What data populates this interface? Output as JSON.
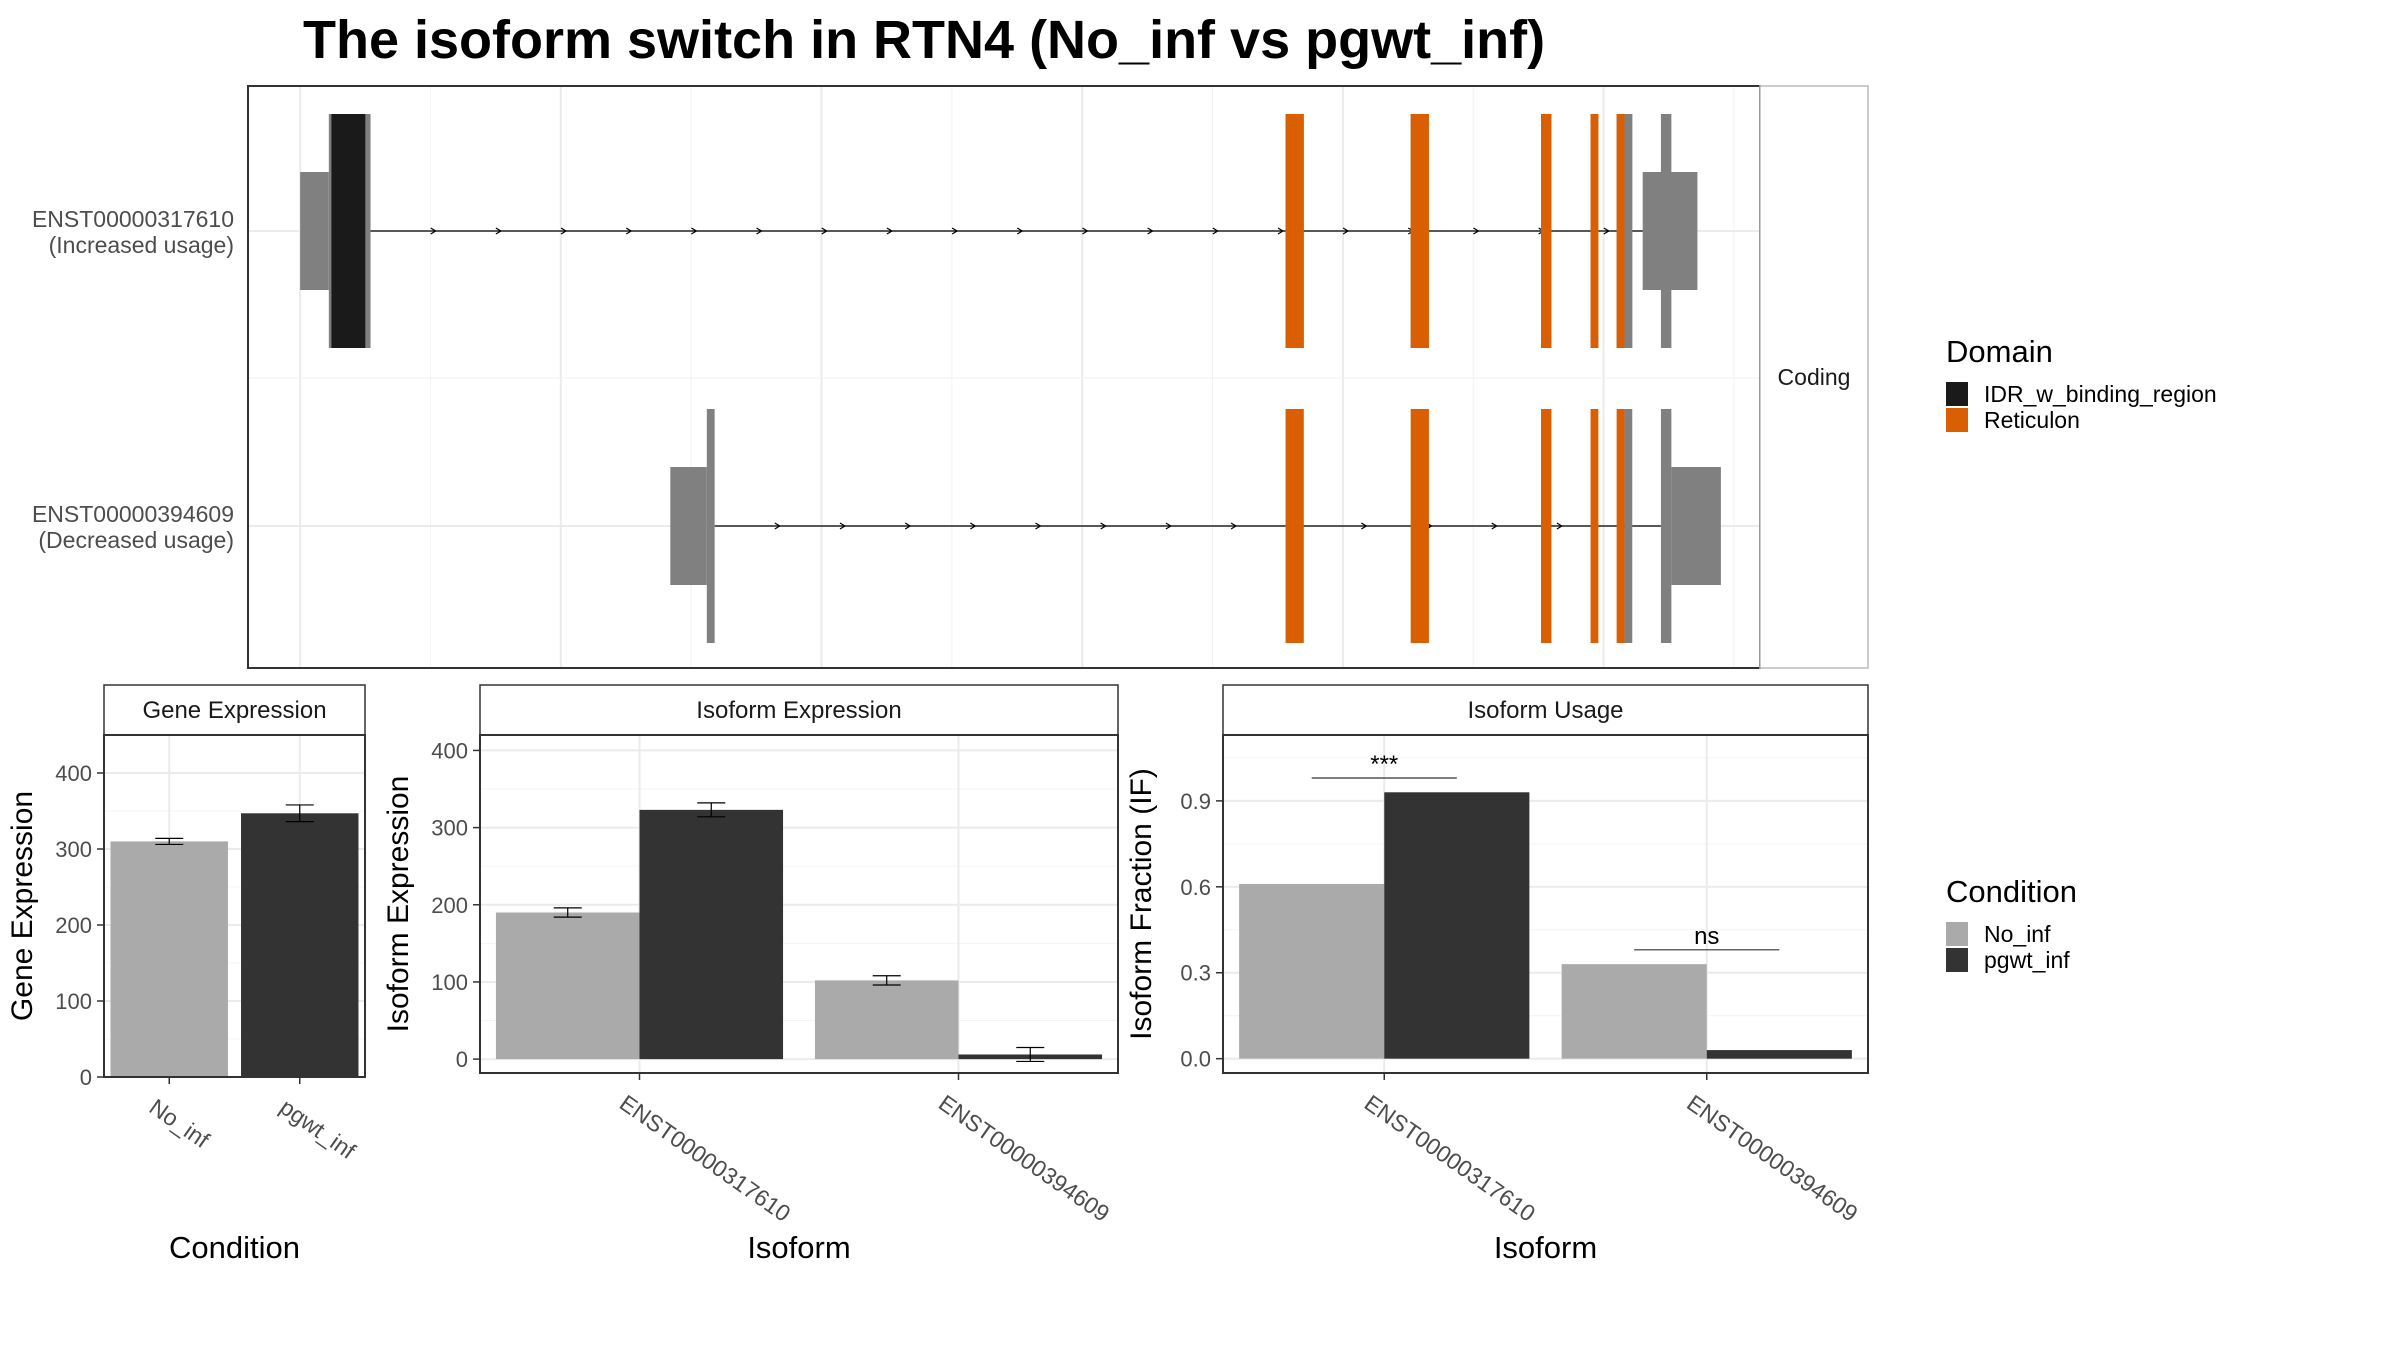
{
  "title": "The isoform switch in RTN4 (No_inf vs pgwt_inf)",
  "colors": {
    "idr": "#1a1a1a",
    "reticulon": "#d95f02",
    "utr_exon": "#808080",
    "no_inf": "#aaaaaa",
    "pgwt_inf": "#333333",
    "panel_border": "#333333",
    "strip_bg": "#ffffff",
    "grid": "#ebebeb"
  },
  "structure": {
    "strip_label": "Coding",
    "tracks": [
      {
        "id": "ENST00000317610",
        "label_line1": "ENST00000317610",
        "label_line2": "(Increased usage)",
        "utr_blocks": [
          [
            2.0,
            3.1
          ],
          [
            53.5,
            55.6
          ]
        ],
        "coding_blocks": [
          [
            3.1,
            4.7
          ],
          [
            39.8,
            40.5
          ],
          [
            44.6,
            45.3
          ],
          [
            49.6,
            50.0
          ],
          [
            51.5,
            51.8
          ],
          [
            52.5,
            53.1
          ],
          [
            53.1,
            53.1
          ]
        ],
        "domains": [
          {
            "domain": "IDR_w_binding_region",
            "start": 3.2,
            "end": 4.5
          },
          {
            "domain": "Reticulon",
            "start": 39.8,
            "end": 40.5
          },
          {
            "domain": "Reticulon",
            "start": 44.6,
            "end": 45.3
          },
          {
            "domain": "Reticulon",
            "start": 49.6,
            "end": 50.0
          },
          {
            "domain": "Reticulon",
            "start": 51.5,
            "end": 51.8
          },
          {
            "domain": "Reticulon",
            "start": 52.5,
            "end": 52.8
          }
        ],
        "extra_exons": [
          [
            52.8,
            53.1
          ],
          [
            54.2,
            54.6
          ]
        ],
        "intron": [
          4.7,
          54.2
        ]
      },
      {
        "id": "ENST00000394609",
        "label_line1": "ENST00000394609",
        "label_line2": "(Decreased usage)",
        "utr_blocks": [
          [
            16.2,
            17.6
          ],
          [
            54.6,
            56.5
          ]
        ],
        "coding_blocks": [],
        "domains": [
          {
            "domain": "Reticulon",
            "start": 39.8,
            "end": 40.5
          },
          {
            "domain": "Reticulon",
            "start": 44.6,
            "end": 45.3
          },
          {
            "domain": "Reticulon",
            "start": 49.6,
            "end": 50.0
          },
          {
            "domain": "Reticulon",
            "start": 51.5,
            "end": 51.8
          },
          {
            "domain": "Reticulon",
            "start": 52.5,
            "end": 52.8
          }
        ],
        "extra_exons": [
          [
            17.6,
            17.9
          ],
          [
            52.8,
            53.1
          ],
          [
            54.2,
            54.6
          ]
        ],
        "intron": [
          17.9,
          54.2
        ]
      }
    ],
    "legend_title": "Domain",
    "legend_items": [
      {
        "label": "IDR_w_binding_region",
        "color": "#1a1a1a"
      },
      {
        "label": "Reticulon",
        "color": "#d95f02"
      }
    ]
  },
  "chart_data": [
    {
      "type": "bar",
      "title": "Gene Expression",
      "xlabel": "Condition",
      "ylabel": "Gene Expression",
      "categories": [
        "No_inf",
        "pgwt_inf"
      ],
      "values": [
        310,
        347
      ],
      "errors": [
        4,
        11
      ],
      "ylim": [
        0,
        450
      ],
      "yticks": [
        0,
        100,
        200,
        300,
        400
      ]
    },
    {
      "type": "bar",
      "title": "Isoform Expression",
      "xlabel": "Isoform",
      "ylabel": "Isoform Expression",
      "categories": [
        "ENST00000317610",
        "ENST00000394609"
      ],
      "series": [
        {
          "name": "No_inf",
          "values": [
            190,
            102
          ],
          "errors": [
            6,
            6
          ]
        },
        {
          "name": "pgwt_inf",
          "values": [
            323,
            6
          ],
          "errors": [
            9,
            9
          ]
        }
      ],
      "ylim": [
        -18,
        420
      ],
      "yticks": [
        0,
        100,
        200,
        300,
        400
      ]
    },
    {
      "type": "bar",
      "title": "Isoform Usage",
      "xlabel": "Isoform",
      "ylabel": "Isoform Fraction (IF)",
      "categories": [
        "ENST00000317610",
        "ENST00000394609"
      ],
      "series": [
        {
          "name": "No_inf",
          "values": [
            0.61,
            0.33
          ]
        },
        {
          "name": "pgwt_inf",
          "values": [
            0.93,
            0.03
          ]
        }
      ],
      "significance": [
        "***",
        "ns"
      ],
      "ylim": [
        -0.05,
        1.13
      ],
      "yticks": [
        0.0,
        0.3,
        0.6,
        0.9
      ],
      "ytick_labels": [
        "0.0",
        "0.3",
        "0.6",
        "0.9"
      ]
    }
  ],
  "condition_legend": {
    "title": "Condition",
    "items": [
      {
        "label": "No_inf",
        "color": "#aaaaaa"
      },
      {
        "label": "pgwt_inf",
        "color": "#333333"
      }
    ]
  }
}
